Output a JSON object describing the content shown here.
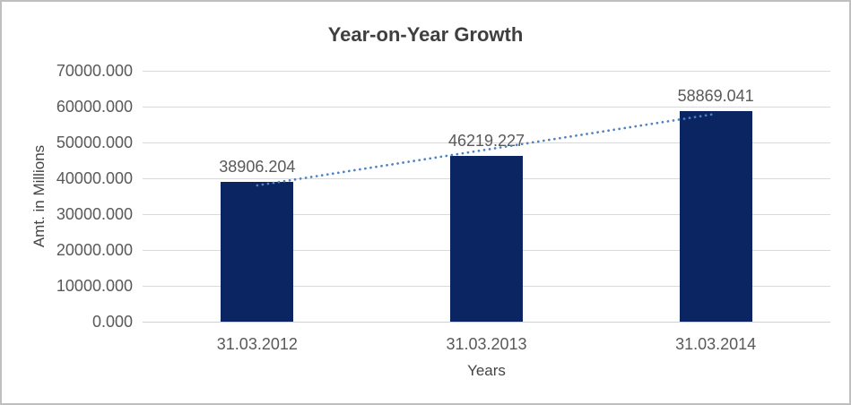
{
  "chart_data": {
    "type": "bar",
    "title": "Year-on-Year Growth",
    "xlabel": "Years",
    "ylabel": "Amt. in Millions",
    "categories": [
      "31.03.2012",
      "31.03.2013",
      "31.03.2014"
    ],
    "values": [
      38906.204,
      46219.227,
      58869.041
    ],
    "data_labels": [
      "38906.204",
      "46219.227",
      "58869.041"
    ],
    "ylim": [
      0,
      70000
    ],
    "ytick_step": 10000,
    "ytick_labels": [
      "0.000",
      "10000.000",
      "20000.000",
      "30000.000",
      "40000.000",
      "50000.000",
      "60000.000",
      "70000.000"
    ],
    "grid": true,
    "legend": "none",
    "trendline": {
      "type": "linear",
      "style": "dotted"
    },
    "colors": {
      "bar": "#0b2562",
      "trendline": "#4e82c4",
      "gridline": "#d9d9d9",
      "tick_text": "#595959",
      "title_text": "#3f3f3f",
      "axis_title_text": "#444444",
      "frame_border": "#bfbfbf",
      "background": "#ffffff"
    }
  }
}
